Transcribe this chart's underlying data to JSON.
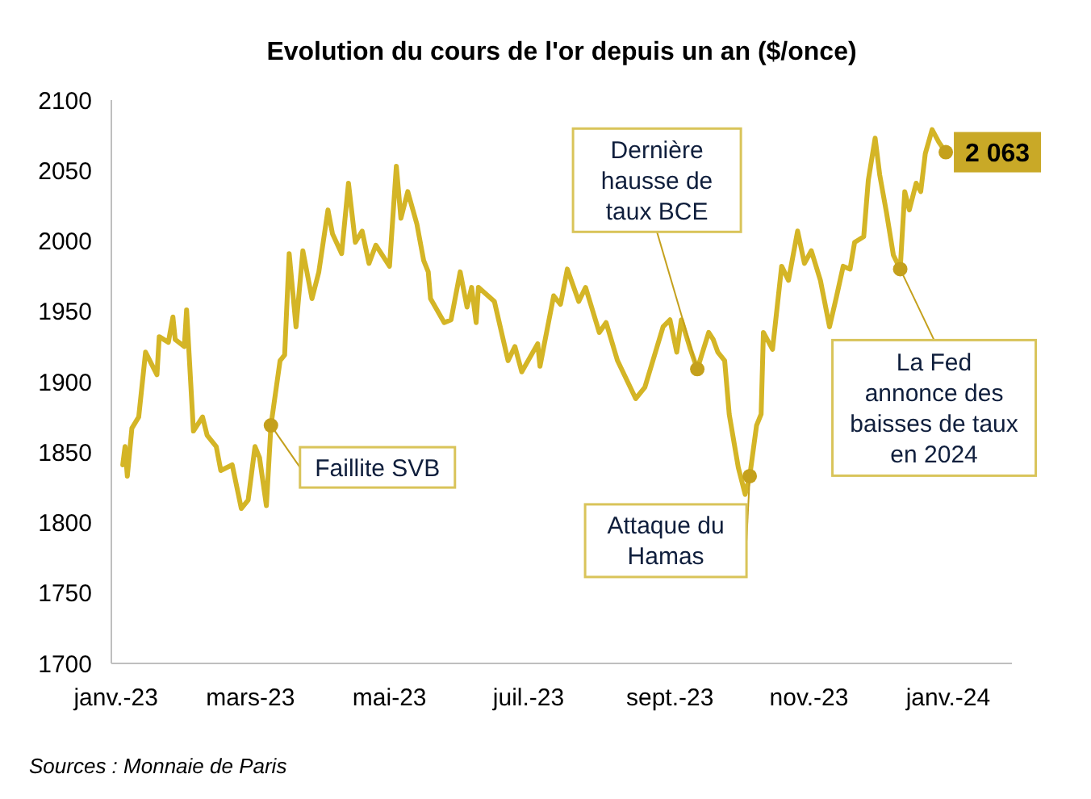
{
  "chart_data": {
    "type": "line",
    "title": "Evolution du cours de l'or depuis un an ($/once)",
    "x": [
      "2023-01-04",
      "2023-01-05",
      "2023-01-06",
      "2023-01-08",
      "2023-01-11",
      "2023-01-14",
      "2023-01-19",
      "2023-01-20",
      "2023-01-24",
      "2023-01-26",
      "2023-01-27",
      "2023-01-31",
      "2023-02-01",
      "2023-02-04",
      "2023-02-08",
      "2023-02-10",
      "2023-02-14",
      "2023-02-16",
      "2023-02-21",
      "2023-02-25",
      "2023-02-28",
      "2023-03-03",
      "2023-03-05",
      "2023-03-08",
      "2023-03-10",
      "2023-03-14",
      "2023-03-16",
      "2023-03-18",
      "2023-03-21",
      "2023-03-24",
      "2023-03-28",
      "2023-03-31",
      "2023-04-04",
      "2023-04-06",
      "2023-04-10",
      "2023-04-13",
      "2023-04-16",
      "2023-04-19",
      "2023-04-22",
      "2023-04-25",
      "2023-05-01",
      "2023-05-04",
      "2023-05-06",
      "2023-05-09",
      "2023-05-13",
      "2023-05-16",
      "2023-05-18",
      "2023-05-19",
      "2023-05-25",
      "2023-05-28",
      "2023-06-01",
      "2023-06-04",
      "2023-06-06",
      "2023-06-08",
      "2023-06-09",
      "2023-06-16",
      "2023-06-22",
      "2023-06-25",
      "2023-06-28",
      "2023-07-05",
      "2023-07-06",
      "2023-07-12",
      "2023-07-15",
      "2023-07-18",
      "2023-07-23",
      "2023-07-26",
      "2023-08-01",
      "2023-08-04",
      "2023-08-09",
      "2023-08-17",
      "2023-08-21",
      "2023-08-29",
      "2023-09-01",
      "2023-09-04",
      "2023-09-06",
      "2023-09-10",
      "2023-09-13",
      "2023-09-18",
      "2023-09-20",
      "2023-09-22",
      "2023-09-25",
      "2023-09-27",
      "2023-10-01",
      "2023-10-04",
      "2023-10-06",
      "2023-10-09",
      "2023-10-11",
      "2023-10-12",
      "2023-10-16",
      "2023-10-20",
      "2023-10-23",
      "2023-10-27",
      "2023-10-30",
      "2023-11-02",
      "2023-11-06",
      "2023-11-10",
      "2023-11-13",
      "2023-11-16",
      "2023-11-19",
      "2023-11-21",
      "2023-11-25",
      "2023-11-27",
      "2023-11-30",
      "2023-12-02",
      "2023-12-05",
      "2023-12-08",
      "2023-12-11",
      "2023-12-13",
      "2023-12-15",
      "2023-12-18",
      "2023-12-20",
      "2023-12-22",
      "2023-12-25",
      "2023-12-28",
      "2023-12-31"
    ],
    "series": [
      {
        "color": "#d4b526",
        "values": [
          1841,
          1854,
          1833,
          1867,
          1875,
          1921,
          1905,
          1932,
          1928,
          1946,
          1930,
          1925,
          1951,
          1865,
          1875,
          1862,
          1854,
          1837,
          1841,
          1810,
          1816,
          1854,
          1846,
          1812,
          1869,
          1915,
          1919,
          1991,
          1939,
          1993,
          1959,
          1978,
          2022,
          2005,
          1991,
          2041,
          1999,
          2007,
          1984,
          1997,
          1982,
          2053,
          2016,
          2035,
          2012,
          1986,
          1978,
          1959,
          1942,
          1944,
          1978,
          1953,
          1967,
          1942,
          1967,
          1957,
          1915,
          1925,
          1907,
          1927,
          1911,
          1961,
          1955,
          1980,
          1957,
          1967,
          1935,
          1942,
          1915,
          1888,
          1896,
          1939,
          1944,
          1921,
          1944,
          1923,
          1909,
          1935,
          1930,
          1921,
          1915,
          1877,
          1839,
          1820,
          1833,
          1869,
          1877,
          1935,
          1923,
          1982,
          1972,
          2007,
          1984,
          1993,
          1972,
          1939,
          1960,
          1982,
          1980,
          1999,
          2003,
          2043,
          2073,
          2047,
          2020,
          1990,
          1980,
          2035,
          2022,
          2041,
          2035,
          2062,
          2079,
          2070,
          2063
        ]
      }
    ],
    "xlim": [
      "2022-12-30",
      "2024-01-29"
    ],
    "xticks": [
      {
        "value": "2023-01-01",
        "label": "janv.-23"
      },
      {
        "value": "2023-03-01",
        "label": "mars-23"
      },
      {
        "value": "2023-05-01",
        "label": "mai-23"
      },
      {
        "value": "2023-07-01",
        "label": "juil.-23"
      },
      {
        "value": "2023-09-01",
        "label": "sept.-23"
      },
      {
        "value": "2023-11-01",
        "label": "nov.-23"
      },
      {
        "value": "2024-01-01",
        "label": "janv.-24"
      }
    ],
    "ylim": [
      1700,
      2100
    ],
    "yticks": [
      1700,
      1750,
      1800,
      1850,
      1900,
      1950,
      2000,
      2050,
      2100
    ],
    "grid": false,
    "annotations": [
      {
        "text": "Faillite SVB",
        "x": "2023-03-10",
        "y": 1869
      },
      {
        "text": "Dernière\nhausse de\ntaux BCE",
        "x": "2023-09-13",
        "y": 1909
      },
      {
        "text": "Attaque du\nHamas",
        "x": "2023-10-06",
        "y": 1833
      },
      {
        "text": "La Fed\nannonce des\nbaisses de taux\nen 2024",
        "x": "2023-12-11",
        "y": 1980
      },
      {
        "text": "2 063",
        "x": "2023-12-31",
        "y": 2063
      },
      "Sources : Monnaie de Paris"
    ]
  }
}
